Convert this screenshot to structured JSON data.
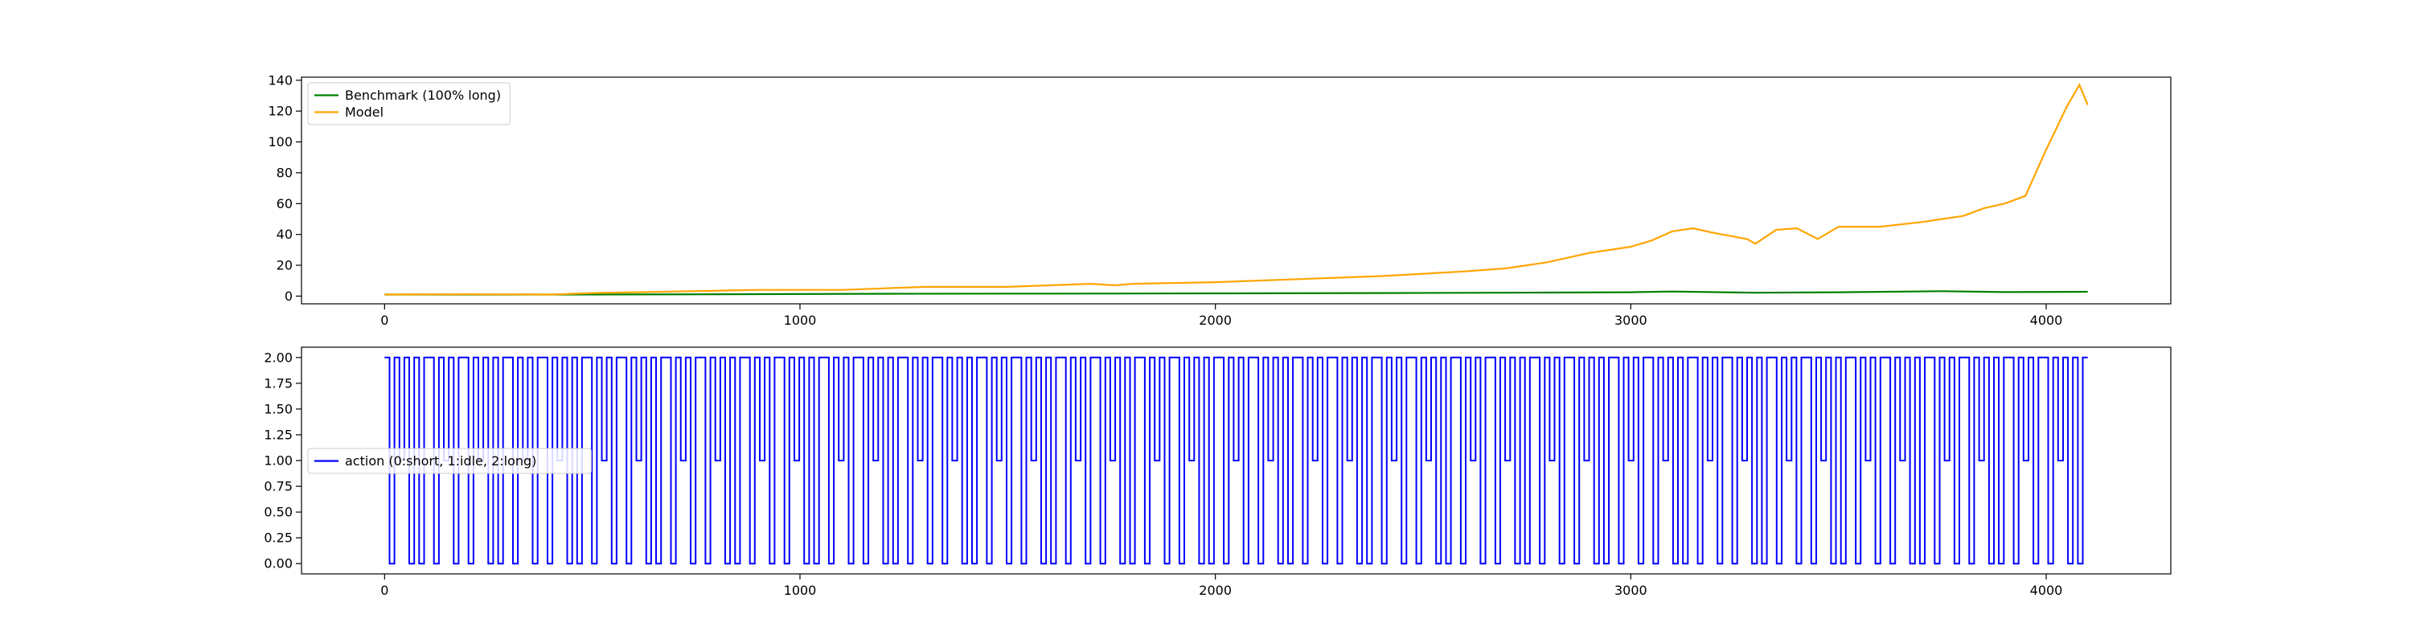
{
  "colors": {
    "benchmark": "#008000",
    "model": "#ffa500",
    "action": "#0000ff"
  },
  "chart_data": [
    {
      "type": "line",
      "title": "",
      "xlabel": "",
      "ylabel": "",
      "xlim": [
        -200,
        4300
      ],
      "ylim": [
        -5,
        142
      ],
      "xticks": [
        0,
        1000,
        2000,
        3000,
        4000
      ],
      "yticks": [
        0,
        20,
        40,
        60,
        80,
        100,
        120,
        140
      ],
      "grid": false,
      "legend_position": "upper-left",
      "series": [
        {
          "name": "Benchmark (100% long)",
          "color": "#008000",
          "points": [
            [
              0,
              1
            ],
            [
              400,
              1
            ],
            [
              800,
              1.2
            ],
            [
              1200,
              1.5
            ],
            [
              1600,
              1.6
            ],
            [
              2000,
              1.8
            ],
            [
              2400,
              2
            ],
            [
              2800,
              2.3
            ],
            [
              3000,
              2.5
            ],
            [
              3100,
              3
            ],
            [
              3300,
              2.2
            ],
            [
              3500,
              2.5
            ],
            [
              3750,
              3.2
            ],
            [
              3900,
              2.6
            ],
            [
              4100,
              2.8
            ]
          ]
        },
        {
          "name": "Model",
          "color": "#ffa500",
          "points": [
            [
              0,
              1
            ],
            [
              200,
              1.2
            ],
            [
              400,
              1
            ],
            [
              500,
              2
            ],
            [
              700,
              3
            ],
            [
              900,
              4
            ],
            [
              1100,
              4
            ],
            [
              1200,
              5
            ],
            [
              1300,
              6
            ],
            [
              1500,
              6
            ],
            [
              1600,
              7
            ],
            [
              1700,
              8
            ],
            [
              1760,
              7
            ],
            [
              1800,
              8
            ],
            [
              2000,
              9
            ],
            [
              2200,
              11
            ],
            [
              2400,
              13
            ],
            [
              2600,
              16
            ],
            [
              2700,
              18
            ],
            [
              2800,
              22
            ],
            [
              2900,
              28
            ],
            [
              3000,
              32
            ],
            [
              3050,
              36
            ],
            [
              3100,
              42
            ],
            [
              3150,
              44
            ],
            [
              3200,
              41
            ],
            [
              3280,
              37
            ],
            [
              3300,
              34
            ],
            [
              3350,
              43
            ],
            [
              3400,
              44
            ],
            [
              3450,
              37
            ],
            [
              3500,
              45
            ],
            [
              3600,
              45
            ],
            [
              3700,
              48
            ],
            [
              3800,
              52
            ],
            [
              3850,
              57
            ],
            [
              3900,
              60
            ],
            [
              3950,
              65
            ],
            [
              4000,
              95
            ],
            [
              4050,
              123
            ],
            [
              4080,
              137
            ],
            [
              4100,
              124
            ]
          ]
        }
      ]
    },
    {
      "type": "line",
      "title": "",
      "xlabel": "",
      "ylabel": "",
      "xlim": [
        -200,
        4300
      ],
      "ylim": [
        -0.1,
        2.1
      ],
      "xticks": [
        0,
        1000,
        2000,
        3000,
        4000
      ],
      "yticks": [
        0.0,
        0.25,
        0.5,
        0.75,
        1.0,
        1.25,
        1.5,
        1.75,
        2.0
      ],
      "grid": false,
      "legend_position": "center-left",
      "series": [
        {
          "name": "action (0:short, 1:idle, 2:long)",
          "color": "#0000ff",
          "drawstyle": "steps",
          "x_start": 0,
          "x_end": 4100,
          "values": [
            2,
            0,
            2,
            1,
            2,
            0,
            2,
            0,
            2,
            2,
            0,
            2,
            1,
            2,
            0,
            2,
            2,
            0,
            2,
            1,
            2,
            0,
            2,
            0,
            2,
            2,
            0,
            2,
            1,
            2,
            0,
            2,
            2,
            0,
            2,
            1,
            2,
            0,
            2,
            0,
            2,
            2,
            0,
            2,
            1,
            2,
            0,
            2,
            2,
            0,
            2,
            1,
            2,
            0,
            2,
            0,
            2,
            2,
            0,
            2,
            1,
            2,
            0,
            2,
            2,
            0,
            2,
            1,
            2,
            0,
            2,
            0,
            2,
            2,
            0,
            2,
            1,
            2,
            0,
            2,
            2,
            0,
            2,
            1,
            2,
            0,
            2,
            0,
            2,
            2,
            0,
            2,
            1,
            2,
            0,
            2,
            2,
            0,
            2,
            1,
            2,
            0,
            2,
            0,
            2,
            2,
            0,
            2,
            1,
            2,
            0,
            2,
            2,
            0,
            2,
            1,
            2,
            0,
            2,
            0,
            2,
            2,
            0,
            2,
            1,
            2,
            0,
            2,
            2,
            0,
            2,
            1,
            2,
            0,
            2,
            0,
            2,
            2,
            0,
            2,
            1,
            2,
            0,
            2,
            2,
            0,
            2,
            1,
            2,
            0,
            2,
            0,
            2,
            2,
            0,
            2,
            1,
            2,
            0,
            2,
            2,
            0,
            2,
            1,
            2,
            0,
            2,
            0,
            2,
            2,
            0,
            2,
            1,
            2,
            0,
            2,
            2,
            0,
            2,
            1,
            2,
            0,
            2,
            0,
            2,
            2,
            0,
            2,
            1,
            2,
            0,
            2,
            2,
            0,
            2,
            1,
            2,
            0,
            2,
            0,
            2,
            2,
            0,
            2,
            1,
            2,
            0,
            2,
            2,
            0,
            2,
            1,
            2,
            0,
            2,
            0,
            2,
            2,
            0,
            2,
            1,
            2,
            0,
            2,
            2,
            0,
            2,
            1,
            2,
            0,
            2,
            0,
            2,
            2,
            0,
            2,
            1,
            2,
            0,
            2,
            2,
            0,
            2,
            1,
            2,
            0,
            2,
            0,
            2,
            2,
            0,
            2,
            1,
            2,
            0,
            2,
            2,
            0,
            2,
            1,
            2,
            0,
            2,
            0,
            2,
            2,
            0,
            2,
            1,
            2,
            0,
            2,
            2,
            0,
            2,
            1,
            2,
            0,
            2,
            0,
            2,
            2,
            0,
            2,
            1,
            2,
            0,
            2,
            2,
            0,
            2,
            1,
            2,
            0,
            2,
            0,
            2,
            2,
            0,
            2,
            1,
            2,
            0,
            2,
            2,
            0,
            2,
            1,
            2,
            0,
            2,
            0,
            2,
            2,
            0,
            2,
            1,
            2,
            0,
            2,
            2,
            0,
            2,
            1,
            2,
            0,
            2,
            0,
            2,
            2,
            0,
            2,
            1,
            2,
            0,
            2,
            2,
            0,
            2,
            1,
            2,
            0,
            2,
            0,
            2
          ]
        }
      ]
    }
  ]
}
